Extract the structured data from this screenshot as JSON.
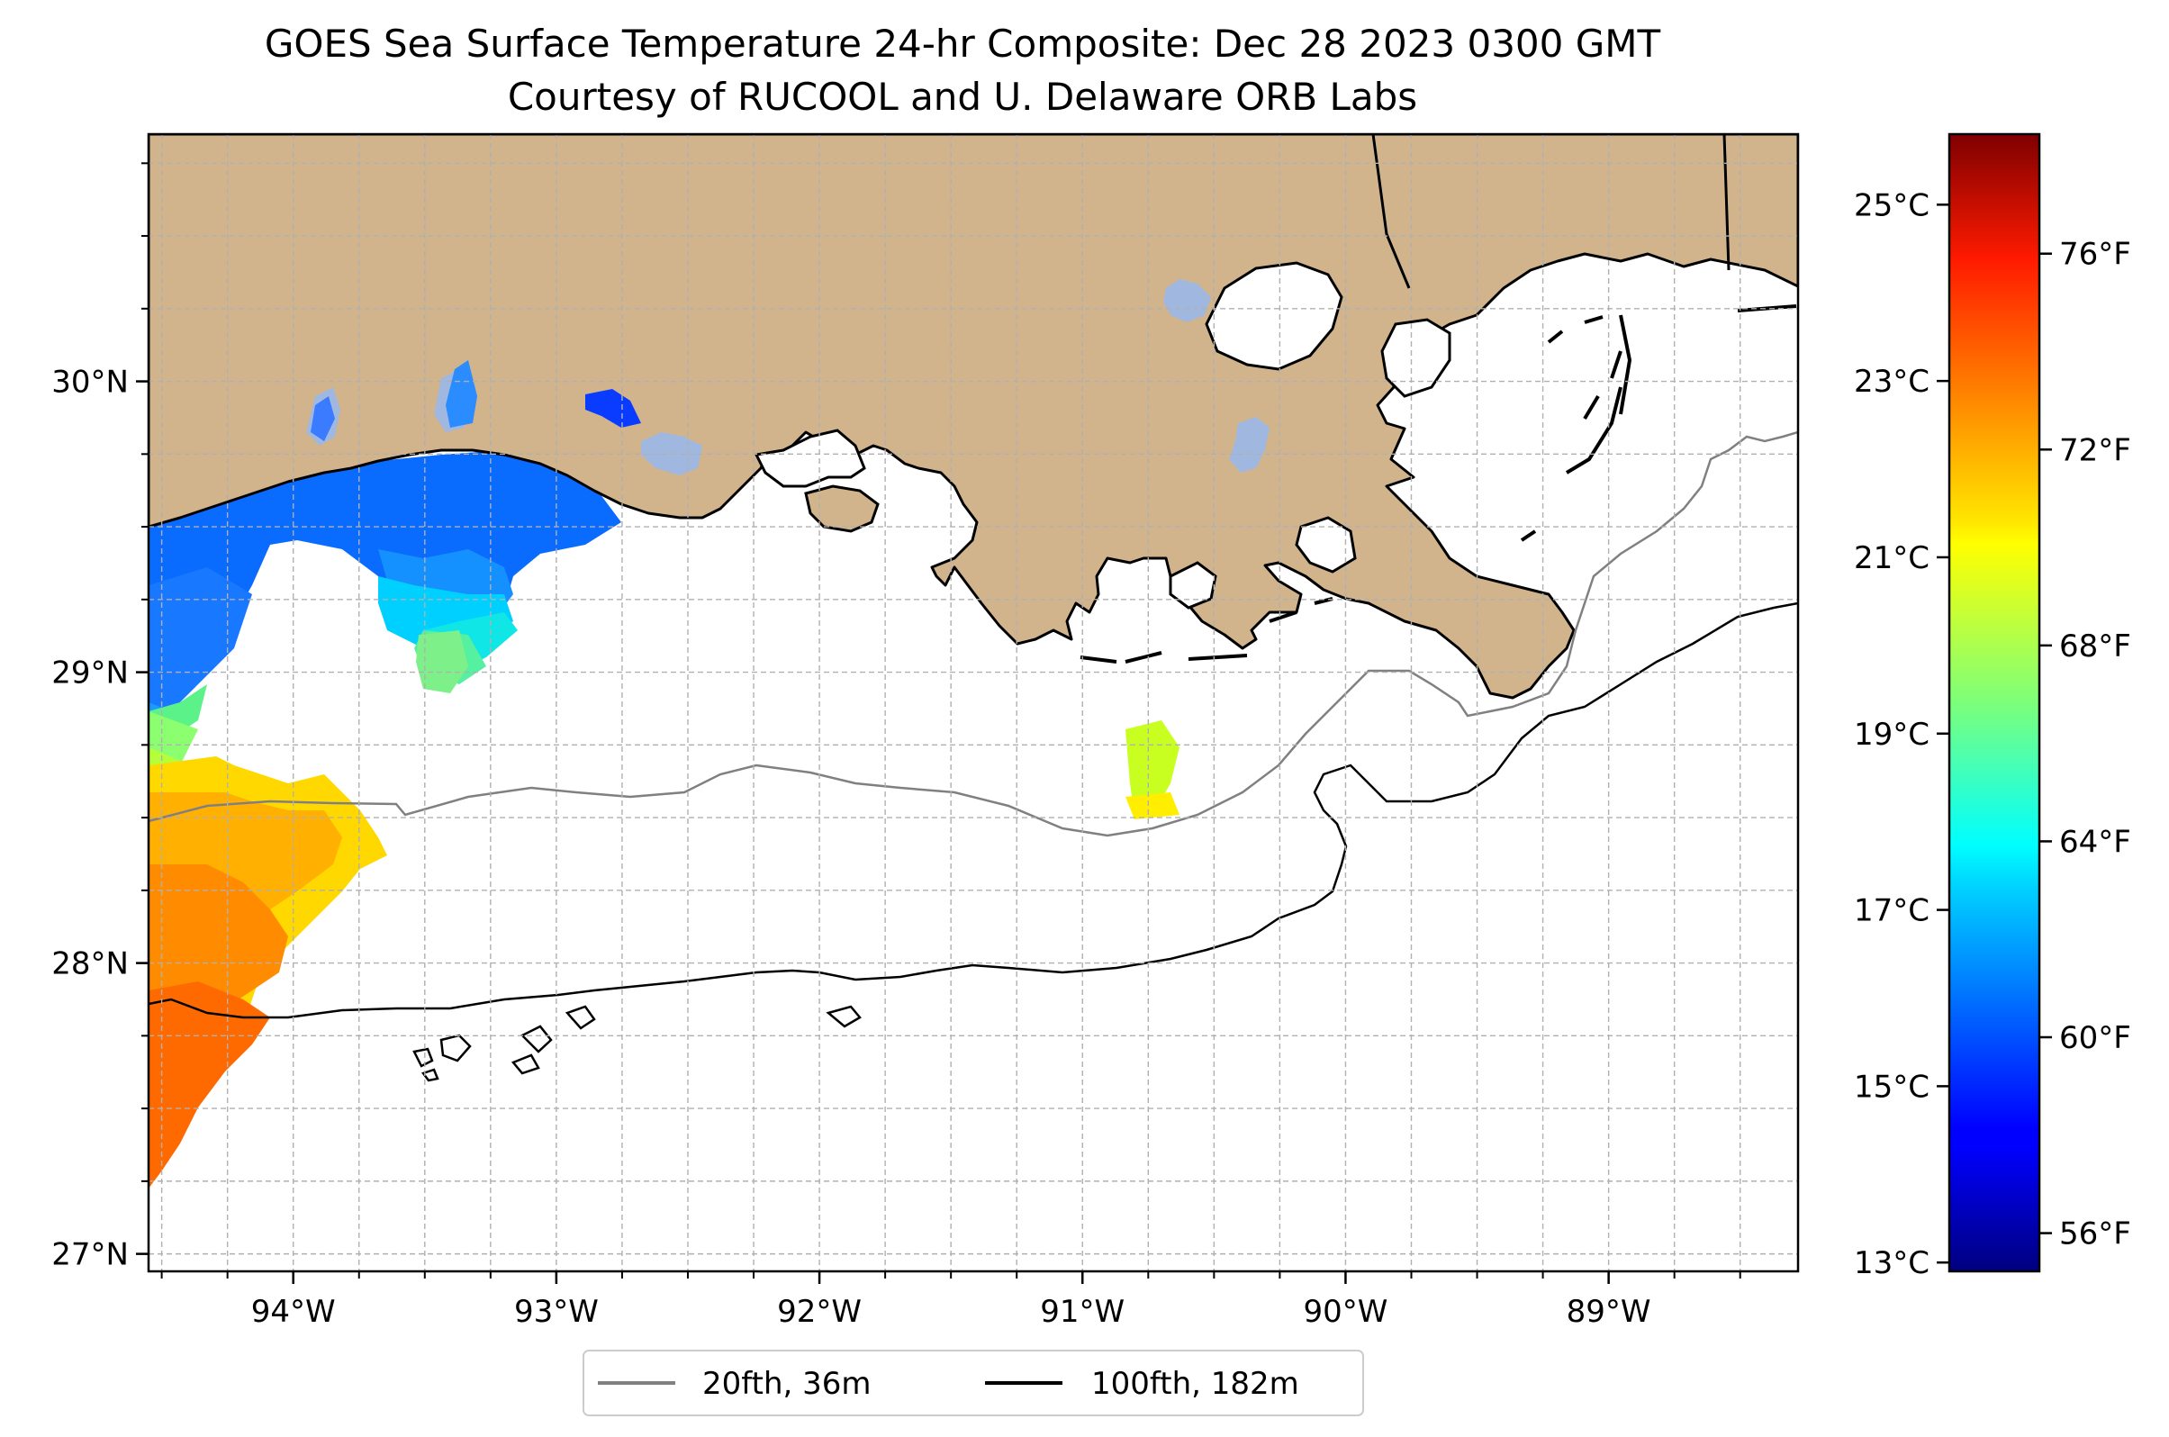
{
  "title": {
    "line1": "GOES Sea Surface Temperature 24-hr Composite: Dec 28 2023 0300 GMT",
    "line2": "Courtesy of RUCOOL and U. Delaware ORB Labs"
  },
  "map": {
    "lon_range": [
      -94.55,
      -88.28
    ],
    "lat_range": [
      26.94,
      30.85
    ],
    "lat_ticks": [
      {
        "value": 30,
        "label": "30°N"
      },
      {
        "value": 29,
        "label": "29°N"
      },
      {
        "value": 28,
        "label": "28°N"
      },
      {
        "value": 27,
        "label": "27°N"
      }
    ],
    "lon_ticks": [
      {
        "value": -94,
        "label": "94°W"
      },
      {
        "value": -93,
        "label": "93°W"
      },
      {
        "value": -92,
        "label": "92°W"
      },
      {
        "value": -91,
        "label": "91°W"
      },
      {
        "value": -90,
        "label": "90°W"
      },
      {
        "value": -89,
        "label": "89°W"
      }
    ],
    "gridlines": "on, dashed, every 0.25°",
    "land_color": "#d2b48c",
    "lake_color": "#a0b8e0"
  },
  "legend": {
    "placement": "bottom-center",
    "items": [
      {
        "label": "20fth, 36m",
        "color": "#808080"
      },
      {
        "label": "100fth, 182m",
        "color": "#000000"
      }
    ]
  },
  "colorbar": {
    "colormap": "jet",
    "range_c": [
      12.9,
      25.8
    ],
    "celsius_ticks": [
      {
        "value": 25,
        "label": "25°C"
      },
      {
        "value": 23,
        "label": "23°C"
      },
      {
        "value": 21,
        "label": "21°C"
      },
      {
        "value": 19,
        "label": "19°C"
      },
      {
        "value": 17,
        "label": "17°C"
      },
      {
        "value": 15,
        "label": "15°C"
      },
      {
        "value": 13,
        "label": "13°C"
      }
    ],
    "fahrenheit_ticks": [
      {
        "value": 76,
        "label": "76°F"
      },
      {
        "value": 72,
        "label": "72°F"
      },
      {
        "value": 68,
        "label": "68°F"
      },
      {
        "value": 64,
        "label": "64°F"
      },
      {
        "value": 60,
        "label": "60°F"
      },
      {
        "value": 56,
        "label": "56°F"
      }
    ]
  }
}
